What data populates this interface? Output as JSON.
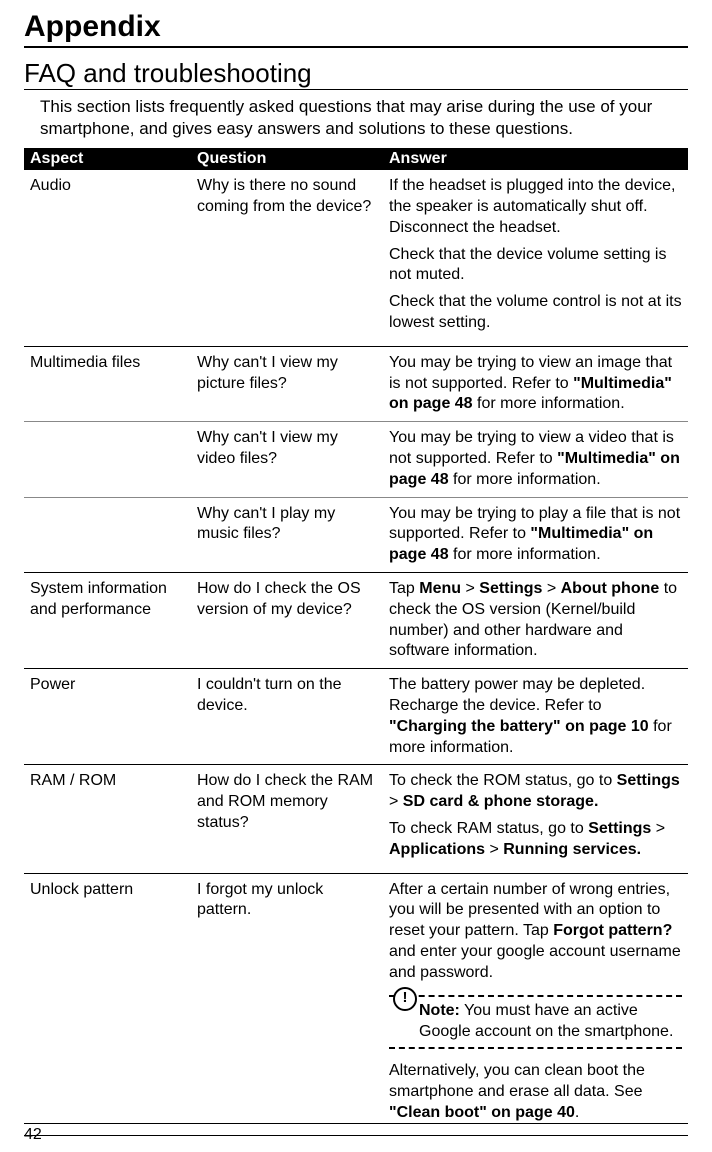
{
  "page_number": "42",
  "title": "Appendix",
  "subtitle": "FAQ and troubleshooting",
  "intro": "This section lists frequently asked questions that may arise during the use of your smartphone, and gives easy answers and solutions to these questions.",
  "table": {
    "headers": {
      "aspect": "Aspect",
      "question": "Question",
      "answer": "Answer"
    },
    "rows": {
      "audio": {
        "aspect": "Audio",
        "question": "Why is there no sound coming from the device?",
        "answer1": "If the headset is plugged into the device, the speaker is automatically shut off. Disconnect the headset.",
        "answer2": "Check that the device volume setting is not muted.",
        "answer3": "Check that the volume control is not at its lowest setting."
      },
      "multimedia_pic": {
        "aspect": "Multimedia files",
        "question": "Why can't I view my picture files?",
        "answer_pre": "You may be trying to view an image that is not supported. Refer to ",
        "answer_bold": "\"Multimedia\" on page 48",
        "answer_post": " for more information."
      },
      "multimedia_video": {
        "question": "Why can't I view my video files?",
        "answer_pre": "You may be trying to view a video that is not supported. Refer to ",
        "answer_bold": "\"Multimedia\" on page 48",
        "answer_post": " for more information."
      },
      "multimedia_music": {
        "question": "Why can't I play my music files?",
        "answer_pre": "You may be trying to play a file that is not supported. Refer to ",
        "answer_bold": "\"Multimedia\" on page 48",
        "answer_post": " for more information."
      },
      "system": {
        "aspect": "System information and performance",
        "question": "How do I check the OS version of my device?",
        "answer_pre": "Tap ",
        "answer_b1": "Menu",
        "answer_g1": " > ",
        "answer_b2": "Settings",
        "answer_g2": " > ",
        "answer_b3": "About phone",
        "answer_post": " to check the OS version (Kernel/build number) and other hardware and software information."
      },
      "power": {
        "aspect": "Power",
        "question": "I couldn't turn on the device.",
        "answer_pre": "The battery power may be depleted. Recharge the device. Refer to ",
        "answer_bold": "\"Charging the battery\" on page 10",
        "answer_post": " for more information."
      },
      "ram": {
        "aspect": "RAM / ROM",
        "question": "How do I check the RAM and ROM memory status?",
        "a1_pre": "To check the ROM status, go to ",
        "a1_b1": "Settings",
        "a1_g1": " > ",
        "a1_b2": "SD card & phone storage.",
        "a2_pre": "To check RAM status, go to ",
        "a2_b1": "Settings",
        "a2_g1": " > ",
        "a2_b2": "Applications",
        "a2_g2": " > ",
        "a2_b3": "Running services."
      },
      "unlock": {
        "aspect": "Unlock pattern",
        "question": "I forgot my unlock pattern.",
        "a1_pre": "After a certain number of wrong entries, you will be presented with an option to reset your pattern. Tap ",
        "a1_b1": "Forgot pattern?",
        "a1_post": " and enter your google account username and password.",
        "note_label": "Note:",
        "note_text": " You must have an active Google account on the smartphone.",
        "a2_pre": "Alternatively, you can clean boot the smartphone and erase all data. See ",
        "a2_b1": "\"Clean boot\" on page 40",
        "a2_post": "."
      }
    }
  }
}
